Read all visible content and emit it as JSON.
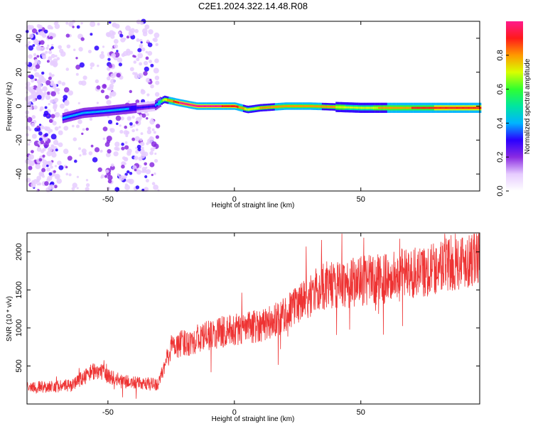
{
  "title": "C2E1.2024.322.14.48.R08",
  "chart_data": [
    {
      "type": "heatmap",
      "xlabel": "Height of straight line (km)",
      "ylabel": "Frequency (Hz)",
      "xlim": [
        -82,
        97
      ],
      "ylim": [
        -50,
        50
      ],
      "xticks": [
        -50,
        0,
        50
      ],
      "yticks": [
        -40,
        -20,
        0,
        20,
        40
      ],
      "colorbar": {
        "label": "Normalized spectral amplitude",
        "range": [
          0.0,
          1.0
        ],
        "ticks": [
          0.0,
          0.2,
          0.4,
          0.6,
          0.8
        ],
        "colormap": [
          "#ffffff",
          "#e6ccff",
          "#8a2be2",
          "#2a00ff",
          "#00b4ff",
          "#00e5a0",
          "#30ff30",
          "#d8ff00",
          "#ff9900",
          "#ff1a1a",
          "#ff1a8c"
        ]
      },
      "ridge": {
        "x": [
          -68,
          -60,
          -52,
          -32,
          -28,
          -22,
          -15,
          -10,
          -5,
          0,
          5,
          10,
          20,
          30,
          50,
          70,
          97
        ],
        "freq": [
          -7,
          -4,
          -3,
          0,
          4,
          2,
          0,
          0,
          0,
          0,
          -2,
          -1,
          0,
          0,
          -1,
          -1,
          -1
        ],
        "peak_amplitude": [
          0.4,
          0.45,
          0.4,
          0.3,
          0.7,
          0.95,
          0.95,
          0.95,
          0.95,
          0.9,
          0.7,
          0.75,
          0.8,
          0.8,
          0.7,
          0.85,
          0.9
        ]
      },
      "noise_region_x": [
        -82,
        -29
      ]
    },
    {
      "type": "line",
      "xlabel": "Height of straight line (km)",
      "ylabel": "SNR (10 * v/v)",
      "xlim": [
        -82,
        97
      ],
      "ylim": [
        0,
        2250
      ],
      "xticks": [
        -50,
        0,
        50
      ],
      "yticks": [
        500,
        1000,
        1500,
        2000
      ],
      "color": "#ee3333",
      "trend": {
        "x": [
          -82,
          -65,
          -55,
          -45,
          -35,
          -30,
          -25,
          -15,
          -5,
          5,
          15,
          25,
          35,
          45,
          60,
          75,
          97
        ],
        "y": [
          220,
          240,
          450,
          300,
          260,
          260,
          750,
          850,
          950,
          1000,
          1080,
          1300,
          1550,
          1600,
          1650,
          1750,
          1950
        ]
      }
    }
  ]
}
